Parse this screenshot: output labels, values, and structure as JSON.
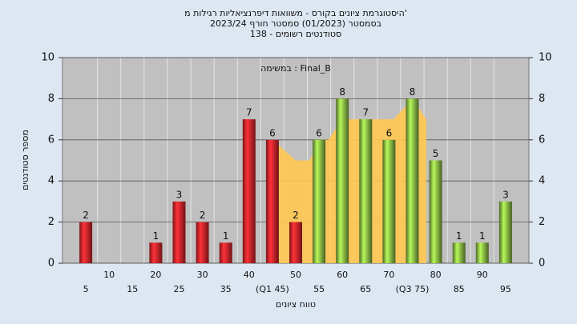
{
  "chart_data": {
    "type": "bar",
    "title": "היסטוגרמת ציונים בקורס - משוואות דיפרנציאליות רגילות מ'",
    "subtitle": "בסמסטר (01/2023) סמסטר חורף 2023/24",
    "subtitle2": "סטודנטים רשומים - 138",
    "annotation": "במשימה : Final_B",
    "xlabel": "טווח ציונים",
    "ylabel": "מספר סטודנטים",
    "x": [
      5,
      10,
      15,
      20,
      25,
      30,
      35,
      40,
      45,
      50,
      55,
      60,
      65,
      70,
      75,
      80,
      85,
      90,
      95
    ],
    "values": [
      2,
      0,
      0,
      1,
      3,
      2,
      1,
      7,
      6,
      2,
      6,
      8,
      7,
      6,
      8,
      5,
      1,
      1,
      3
    ],
    "colors": [
      "#e3262b",
      "#e3262b",
      "#e3262b",
      "#e3262b",
      "#e3262b",
      "#e3262b",
      "#e3262b",
      "#e3262b",
      "#e3262b",
      "#e3262b",
      "#8dbf45",
      "#8dbf45",
      "#8dbf45",
      "#8dbf45",
      "#8dbf45",
      "#8dbf45",
      "#8dbf45",
      "#8dbf45",
      "#8dbf45"
    ],
    "area": {
      "color": "#ffc850",
      "x": [
        45,
        50,
        53,
        55,
        57,
        60,
        71,
        75,
        78
      ],
      "values": [
        6,
        5,
        5,
        6,
        6,
        7,
        7,
        8,
        7
      ]
    },
    "xlim": [
      0,
      100
    ],
    "xticks": [
      5,
      10,
      15,
      20,
      25,
      30,
      35,
      40,
      {
        "value": 45,
        "label": "(Q1 45)"
      },
      50,
      55,
      60,
      65,
      70,
      {
        "value": 75,
        "label": "(Q3 75)"
      },
      80,
      85,
      90,
      95
    ],
    "ylim": [
      0,
      10
    ],
    "yticks": [
      0,
      2,
      4,
      6,
      8,
      10
    ],
    "y2lim": [
      0,
      10
    ],
    "y2ticks": [
      0,
      2,
      4,
      6,
      8,
      10
    ],
    "grid": true
  }
}
